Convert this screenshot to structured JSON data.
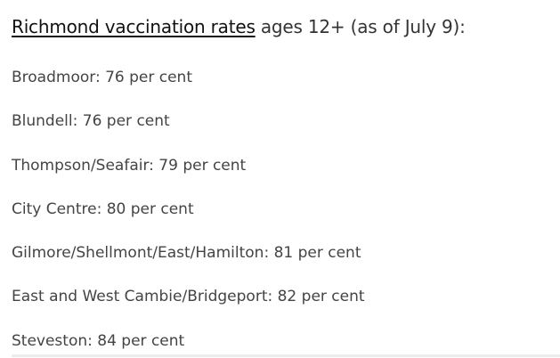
{
  "heading": {
    "link_text": "Richmond vaccination rates",
    "rest_text": " ages 12+ (as of July 9):"
  },
  "rates": [
    {
      "text": "Broadmoor: 76 per cent"
    },
    {
      "text": "Blundell: 76 per cent"
    },
    {
      "text": "Thompson/Seafair: 79 per cent"
    },
    {
      "text": "City Centre: 80 per cent"
    },
    {
      "text": "Gilmore/Shellmont/East/Hamilton: 81 per cent"
    },
    {
      "text": "East and West Cambie/Bridgeport: 82 per cent"
    },
    {
      "text": "Steveston: 84 per cent"
    }
  ],
  "colors": {
    "heading_link": "#111111",
    "body_text": "#444444",
    "divider": "#ececec"
  }
}
